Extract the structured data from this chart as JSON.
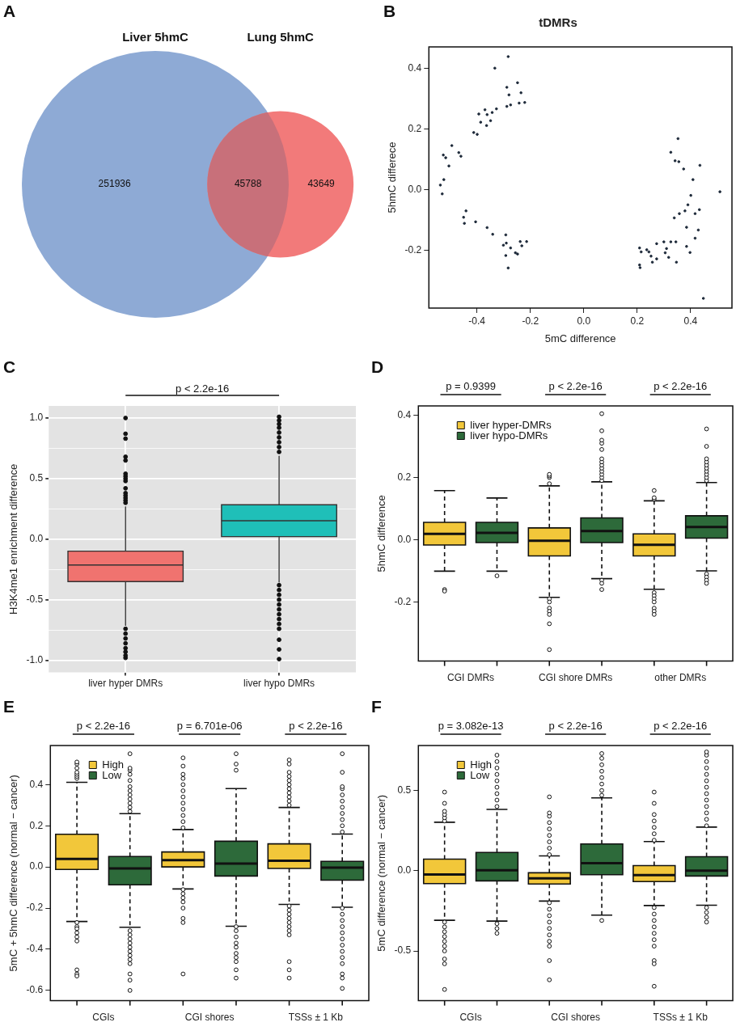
{
  "chart_data": [
    {
      "type": "other",
      "annotations": [
        "A",
        "Liver 5hmC",
        "Lung 5hmC"
      ],
      "categories": [
        null,
        null,
        null
      ],
      "values": [
        251936,
        45788,
        43649
      ],
      "data_labels": true,
      "colors": [
        "#8eaad5",
        "#c8707a",
        "#f27a7a"
      ]
    },
    {
      "type": "scatter",
      "title": "tDMRs",
      "annotations": [
        "B"
      ],
      "xlabel": "5mC difference",
      "ylabel": "5hmC differece",
      "color": "#1e2a3a",
      "marker": "circle",
      "xlim": [
        -0.58,
        0.555
      ],
      "ylim": [
        -0.39,
        0.47
      ],
      "xticks": [
        {
          "value": -0.4,
          "label": "-0.4"
        },
        {
          "value": -0.2,
          "label": "-0.2"
        },
        {
          "value": 0,
          "label": "0.0"
        },
        {
          "value": 0.2,
          "label": "0.2"
        },
        {
          "value": 0.4,
          "label": "0.4"
        }
      ],
      "yticks": [
        {
          "value": -0.2,
          "label": "-0.2"
        },
        {
          "value": 0,
          "label": "0.0"
        },
        {
          "value": 0.2,
          "label": "0.2"
        },
        {
          "value": 0.4,
          "label": "0.4"
        }
      ],
      "x": [
        -0.283,
        -0.333,
        -0.288,
        -0.248,
        -0.235,
        -0.28,
        -0.242,
        -0.221,
        -0.274,
        -0.288,
        -0.327,
        -0.37,
        -0.343,
        -0.393,
        -0.362,
        -0.386,
        -0.349,
        -0.364,
        -0.412,
        -0.399,
        -0.494,
        -0.526,
        -0.517,
        -0.468,
        -0.46,
        -0.505,
        -0.524,
        -0.537,
        -0.53,
        -0.441,
        -0.45,
        -0.447,
        -0.405,
        -0.362,
        -0.341,
        -0.292,
        -0.301,
        -0.29,
        -0.274,
        -0.292,
        -0.256,
        -0.248,
        -0.238,
        -0.232,
        -0.214,
        -0.283,
        0.353,
        0.326,
        0.342,
        0.356,
        0.374,
        0.435,
        0.409,
        0.401,
        0.51,
        0.39,
        0.379,
        0.358,
        0.339,
        0.433,
        0.417,
        0.385,
        0.429,
        0.417,
        0.3,
        0.326,
        0.345,
        0.273,
        0.31,
        0.305,
        0.318,
        0.347,
        0.385,
        0.398,
        0.209,
        0.215,
        0.236,
        0.244,
        0.252,
        0.257,
        0.273,
        0.209,
        0.211,
        0.448
      ],
      "values": [
        0.438,
        0.4,
        0.337,
        0.352,
        0.319,
        0.312,
        0.285,
        0.287,
        0.279,
        0.274,
        0.266,
        0.263,
        0.254,
        0.249,
        0.247,
        0.222,
        0.227,
        0.211,
        0.188,
        0.182,
        0.145,
        0.114,
        0.105,
        0.122,
        0.11,
        0.078,
        0.033,
        0.015,
        -0.014,
        -0.07,
        -0.091,
        -0.111,
        -0.106,
        -0.125,
        -0.147,
        -0.149,
        -0.183,
        -0.176,
        -0.192,
        -0.217,
        -0.208,
        -0.212,
        -0.171,
        -0.185,
        -0.171,
        -0.258,
        0.168,
        0.123,
        0.095,
        0.092,
        0.068,
        0.08,
        0.033,
        -0.019,
        -0.007,
        -0.05,
        -0.07,
        -0.079,
        -0.093,
        -0.066,
        -0.079,
        -0.124,
        -0.133,
        -0.16,
        -0.172,
        -0.172,
        -0.172,
        -0.178,
        -0.194,
        -0.208,
        -0.223,
        -0.239,
        -0.187,
        -0.207,
        -0.192,
        -0.205,
        -0.198,
        -0.205,
        -0.219,
        -0.239,
        -0.228,
        -0.248,
        -0.257,
        -0.358
      ]
    },
    {
      "type": "box",
      "annotations": [
        "C",
        "p < 2.2e-16"
      ],
      "ylabel": "H3K4me1 enrichment difference",
      "grid": true,
      "categories": [
        "liver hyper DMRs",
        "liver hypo DMRs"
      ],
      "colors": [
        "#f0736f",
        "#1fbfb8"
      ],
      "ylim": [
        -1.1,
        1.1
      ],
      "yticks": [
        {
          "value": -1,
          "label": "-1.0"
        },
        {
          "value": -0.75,
          "label": null
        },
        {
          "value": -0.5,
          "label": "-0.5"
        },
        {
          "value": -0.25,
          "label": null
        },
        {
          "value": 0,
          "label": "0.0"
        },
        {
          "value": 0.25,
          "label": null
        },
        {
          "value": 0.5,
          "label": "0.5"
        },
        {
          "value": 0.75,
          "label": null
        },
        {
          "value": 1,
          "label": "1.0"
        }
      ],
      "boxes": [
        {
          "low": -0.716,
          "q1": -0.35,
          "median": -0.213,
          "q3": -0.099,
          "high": 0.27,
          "outliers": [
            1.0,
            0.87,
            0.83,
            0.68,
            0.65,
            0.54,
            0.52,
            0.5,
            0.48,
            0.42,
            0.38,
            0.36,
            0.34,
            0.32,
            0.3,
            -0.74,
            -0.78,
            -0.82,
            -0.86,
            -0.9,
            -0.93,
            -0.96,
            -0.98
          ]
        },
        {
          "low": -0.358,
          "q1": 0.021,
          "median": 0.152,
          "q3": 0.284,
          "high": 0.69,
          "outliers": [
            0.72,
            0.76,
            0.8,
            0.84,
            0.88,
            0.92,
            0.95,
            0.98,
            1.01,
            -0.38,
            -0.42,
            -0.46,
            -0.5,
            -0.54,
            -0.58,
            -0.62,
            -0.66,
            -0.7,
            -0.74,
            -0.83,
            -0.91,
            -0.99
          ]
        }
      ]
    },
    {
      "type": "box",
      "annotations": [
        "D",
        "p = 0.9399",
        "p < 2.2e-16",
        "p < 2.2e-16"
      ],
      "ylabel": "5hmC difference",
      "legend": "top left",
      "categories": [
        "CGI DMRs",
        "CGI shore DMRs",
        "other DMRs"
      ],
      "ylim": [
        -0.39,
        0.43
      ],
      "yticks": [
        {
          "value": -0.2,
          "label": "-0.2"
        },
        {
          "value": 0,
          "label": "0.0"
        },
        {
          "value": 0.2,
          "label": "0.2"
        },
        {
          "value": 0.4,
          "label": "0.4"
        }
      ],
      "series": [
        {
          "name": "liver hyper-DMRs",
          "color": "#f2c73a",
          "boxes": [
            {
              "low": -0.101,
              "q1": -0.017,
              "median": 0.019,
              "q3": 0.056,
              "high": 0.158,
              "outliers": [
                -0.16,
                -0.165
              ]
            },
            {
              "low": -0.185,
              "q1": -0.052,
              "median": -0.003,
              "q3": 0.038,
              "high": 0.173,
              "outliers": [
                0.18,
                0.2,
                0.205,
                0.21,
                -0.19,
                -0.2,
                -0.22,
                -0.23,
                -0.24,
                -0.27,
                -0.353
              ]
            },
            {
              "low": -0.159,
              "q1": -0.052,
              "median": -0.016,
              "q3": 0.019,
              "high": 0.125,
              "outliers": [
                0.13,
                0.135,
                0.158,
                -0.17,
                -0.18,
                -0.19,
                -0.2,
                -0.22,
                -0.23,
                -0.24
              ]
            }
          ]
        },
        {
          "name": "liver hypo-DMRs",
          "color": "#2d6a3a",
          "boxes": [
            {
              "low": -0.101,
              "q1": -0.009,
              "median": 0.022,
              "q3": 0.056,
              "high": 0.134,
              "outliers": [
                -0.116
              ]
            },
            {
              "low": -0.125,
              "q1": -0.009,
              "median": 0.028,
              "q3": 0.07,
              "high": 0.186,
              "outliers": [
                0.19,
                0.2,
                0.21,
                0.22,
                0.23,
                0.24,
                0.25,
                0.26,
                0.29,
                0.31,
                0.32,
                0.35,
                0.405,
                -0.13,
                -0.14,
                -0.16
              ]
            },
            {
              "low": -0.1,
              "q1": 0.005,
              "median": 0.041,
              "q3": 0.077,
              "high": 0.184,
              "outliers": [
                0.19,
                0.2,
                0.21,
                0.22,
                0.23,
                0.24,
                0.25,
                0.26,
                0.3,
                0.356,
                -0.11,
                -0.12,
                -0.13,
                -0.14
              ]
            }
          ]
        }
      ]
    },
    {
      "type": "box",
      "annotations": [
        "E",
        "p < 2.2e-16",
        "p = 6.701e-06",
        "p < 2.2e-16"
      ],
      "ylabel": "5mC + 5hmC difference (normal − cancer)",
      "legend": "top left",
      "categories": [
        "CGIs",
        "CGI shores",
        "TSSs ± 1 Kb"
      ],
      "ylim": [
        -0.65,
        0.59
      ],
      "yticks": [
        {
          "value": -0.6,
          "label": "-0.6"
        },
        {
          "value": -0.4,
          "label": "-0.4"
        },
        {
          "value": -0.2,
          "label": "-0.2"
        },
        {
          "value": 0,
          "label": "0.0"
        },
        {
          "value": 0.2,
          "label": "0.2"
        },
        {
          "value": 0.4,
          "label": "0.4"
        }
      ],
      "series": [
        {
          "name": "High",
          "color": "#f2c73a",
          "boxes": [
            {
              "low": -0.265,
              "q1": -0.012,
              "median": 0.039,
              "q3": 0.159,
              "high": 0.411,
              "outliers": [
                0.43,
                0.44,
                0.45,
                0.46,
                0.48,
                0.5,
                0.51,
                -0.27,
                -0.29,
                -0.3,
                -0.32,
                -0.34,
                -0.36,
                -0.5,
                -0.52,
                -0.53
              ]
            },
            {
              "low": -0.107,
              "q1": 0.0,
              "median": 0.033,
              "q3": 0.073,
              "high": 0.182,
              "outliers": [
                0.19,
                0.22,
                0.25,
                0.28,
                0.31,
                0.34,
                0.37,
                0.4,
                0.43,
                0.45,
                0.49,
                0.53,
                -0.11,
                -0.13,
                -0.15,
                -0.17,
                -0.2,
                -0.25,
                -0.27,
                -0.52
              ]
            },
            {
              "low": -0.182,
              "q1": -0.007,
              "median": 0.03,
              "q3": 0.112,
              "high": 0.289,
              "outliers": [
                0.3,
                0.32,
                0.34,
                0.36,
                0.38,
                0.4,
                0.42,
                0.44,
                0.46,
                0.5,
                0.52,
                -0.19,
                -0.21,
                -0.23,
                -0.25,
                -0.27,
                -0.29,
                -0.31,
                -0.33,
                -0.46,
                -0.5,
                -0.54
              ]
            }
          ]
        },
        {
          "name": "Low",
          "color": "#2d6a3a",
          "boxes": [
            {
              "low": -0.293,
              "q1": -0.087,
              "median": -0.007,
              "q3": 0.051,
              "high": 0.259,
              "outliers": [
                0.27,
                0.29,
                0.31,
                0.33,
                0.35,
                0.37,
                0.39,
                0.42,
                0.45,
                0.47,
                0.48,
                0.55,
                -0.31,
                -0.33,
                -0.35,
                -0.37,
                -0.39,
                -0.41,
                -0.43,
                -0.45,
                -0.47,
                -0.52,
                -0.55,
                -0.6
              ]
            },
            {
              "low": -0.288,
              "q1": -0.044,
              "median": 0.016,
              "q3": 0.125,
              "high": 0.381,
              "outliers": [
                0.47,
                0.5,
                0.55,
                -0.29,
                -0.31,
                -0.34,
                -0.37,
                -0.39,
                -0.42,
                -0.44,
                -0.46,
                -0.5,
                -0.54
              ]
            },
            {
              "low": -0.196,
              "q1": -0.064,
              "median": -0.003,
              "q3": 0.027,
              "high": 0.16,
              "outliers": [
                0.17,
                0.2,
                0.23,
                0.26,
                0.29,
                0.32,
                0.35,
                0.38,
                0.39,
                0.46,
                0.55,
                -0.2,
                -0.23,
                -0.26,
                -0.29,
                -0.32,
                -0.35,
                -0.38,
                -0.41,
                -0.44,
                -0.47,
                -0.52,
                -0.54,
                -0.59
              ]
            }
          ]
        }
      ]
    },
    {
      "type": "box",
      "annotations": [
        "F",
        "p = 3.082e-13",
        "p < 2.2e-16",
        "p < 2.2e-16"
      ],
      "ylabel": "5mC difference (normal − cancer)",
      "legend": "top left",
      "categories": [
        "CGIs",
        "CGI shores",
        "TSSs ± 1 Kb"
      ],
      "ylim": [
        -0.81,
        0.78
      ],
      "yticks": [
        {
          "value": -0.5,
          "label": "-0.5"
        },
        {
          "value": 0,
          "label": "0.0"
        },
        {
          "value": 0.5,
          "label": "0.5"
        }
      ],
      "series": [
        {
          "name": "High",
          "color": "#f2c73a",
          "boxes": [
            {
              "low": -0.309,
              "q1": -0.08,
              "median": -0.023,
              "q3": 0.072,
              "high": 0.302,
              "outliers": [
                0.31,
                0.33,
                0.35,
                0.37,
                0.42,
                0.49,
                -0.32,
                -0.35,
                -0.38,
                -0.41,
                -0.44,
                -0.47,
                -0.5,
                -0.55,
                -0.58,
                -0.74
              ]
            },
            {
              "low": -0.189,
              "q1": -0.083,
              "median": -0.048,
              "q3": -0.013,
              "high": 0.092,
              "outliers": [
                0.1,
                0.14,
                0.18,
                0.22,
                0.26,
                0.3,
                0.34,
                0.36,
                0.46,
                -0.2,
                -0.24,
                -0.28,
                -0.32,
                -0.36,
                -0.4,
                -0.44,
                -0.47,
                -0.56,
                -0.68
              ]
            },
            {
              "low": -0.217,
              "q1": -0.068,
              "median": -0.027,
              "q3": 0.032,
              "high": 0.182,
              "outliers": [
                0.19,
                0.23,
                0.27,
                0.31,
                0.35,
                0.42,
                0.49,
                -0.23,
                -0.27,
                -0.31,
                -0.35,
                -0.39,
                -0.43,
                -0.47,
                -0.56,
                -0.58,
                -0.72
              ]
            }
          ]
        },
        {
          "name": "Low",
          "color": "#2d6a3a",
          "boxes": [
            {
              "low": -0.314,
              "q1": -0.063,
              "median": 0.003,
              "q3": 0.114,
              "high": 0.382,
              "outliers": [
                0.4,
                0.44,
                0.48,
                0.52,
                0.56,
                0.6,
                0.64,
                0.68,
                0.72,
                -0.33,
                -0.36,
                -0.39
              ]
            },
            {
              "low": -0.277,
              "q1": -0.025,
              "median": 0.047,
              "q3": 0.167,
              "high": 0.454,
              "outliers": [
                0.47,
                0.5,
                0.54,
                0.58,
                0.62,
                0.66,
                0.7,
                0.73,
                -0.31
              ]
            },
            {
              "low": -0.215,
              "q1": -0.033,
              "median": 0.0,
              "q3": 0.087,
              "high": 0.272,
              "outliers": [
                0.28,
                0.32,
                0.36,
                0.4,
                0.44,
                0.48,
                0.52,
                0.56,
                0.6,
                0.64,
                0.68,
                0.72,
                0.74,
                -0.23,
                -0.26,
                -0.29,
                -0.32
              ]
            }
          ]
        }
      ]
    }
  ]
}
